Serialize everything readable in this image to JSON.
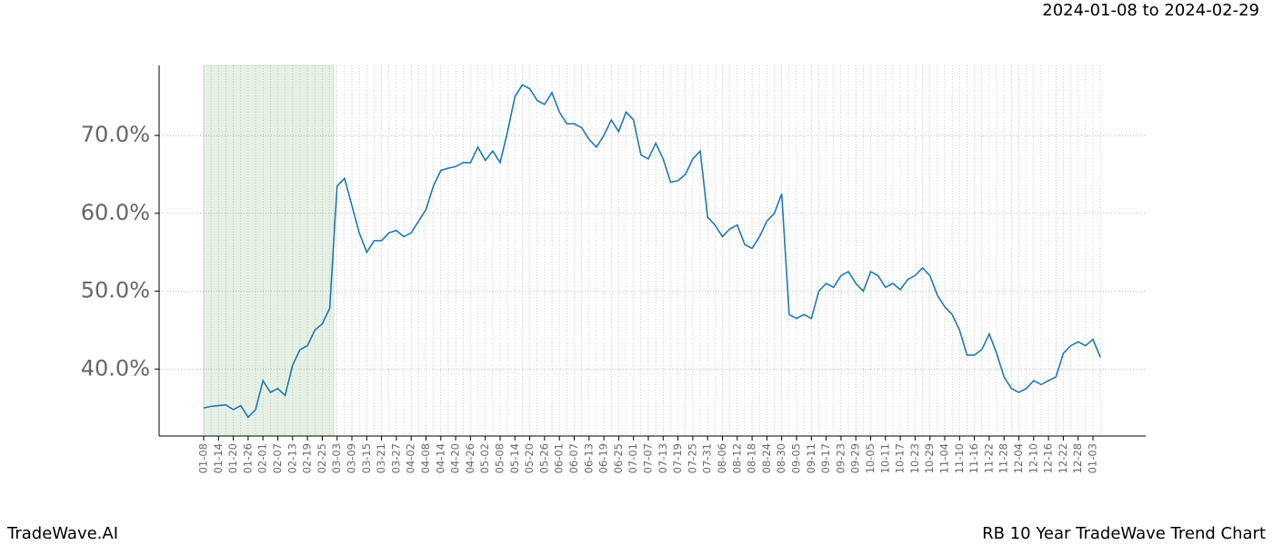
{
  "header": {
    "range": "2024-01-08 to 2024-02-29"
  },
  "footer": {
    "left": "TradeWave.AI",
    "right": "RB 10 Year TradeWave Trend Chart"
  },
  "chart_data": {
    "type": "line",
    "grid": true,
    "categories": [
      "01-08",
      null,
      "01-14",
      null,
      "01-20",
      null,
      "01-26",
      null,
      "02-01",
      null,
      "02-07",
      null,
      "02-13",
      null,
      "02-19",
      null,
      "02-25",
      null,
      "03-03",
      null,
      "03-09",
      null,
      "03-15",
      null,
      "03-21",
      null,
      "03-27",
      null,
      "04-02",
      null,
      "04-08",
      null,
      "04-14",
      null,
      "04-20",
      null,
      "04-26",
      null,
      "05-02",
      null,
      "05-08",
      null,
      "05-14",
      null,
      "05-20",
      null,
      "05-26",
      null,
      "06-01",
      null,
      "06-07",
      null,
      "06-13",
      null,
      "06-19",
      null,
      "06-25",
      null,
      "07-01",
      null,
      "07-07",
      null,
      "07-13",
      null,
      "07-19",
      null,
      "07-25",
      null,
      "07-31",
      null,
      "08-06",
      null,
      "08-12",
      null,
      "08-18",
      null,
      "08-24",
      null,
      "08-30",
      null,
      "09-05",
      null,
      "09-11",
      null,
      "09-17",
      null,
      "09-23",
      null,
      "09-29",
      null,
      "10-05",
      null,
      "10-11",
      null,
      "10-17",
      null,
      "10-23",
      null,
      "10-29",
      null,
      "11-04",
      null,
      "11-10",
      null,
      "11-16",
      null,
      "11-22",
      null,
      "11-28",
      null,
      "12-04",
      null,
      "12-10",
      null,
      "12-16",
      null,
      "12-22",
      null,
      "12-28",
      null,
      "01-03",
      null
    ],
    "series": [
      {
        "color": "#1f77b4",
        "values": [
          35.0,
          35.2,
          35.3,
          35.4,
          34.8,
          35.3,
          33.8,
          34.8,
          38.5,
          37.0,
          37.5,
          36.6,
          40.5,
          42.5,
          43.0,
          45.0,
          45.8,
          47.8,
          63.5,
          64.5,
          61.0,
          57.5,
          55.0,
          56.5,
          56.5,
          57.5,
          57.8,
          57.0,
          57.5,
          59.0,
          60.5,
          63.5,
          65.5,
          65.8,
          66.0,
          66.5,
          66.5,
          68.5,
          66.8,
          68.0,
          66.5,
          70.5,
          75.0,
          76.5,
          76.0,
          74.5,
          74.0,
          75.5,
          73.0,
          71.5,
          71.5,
          71.0,
          69.5,
          68.5,
          70.0,
          72.0,
          70.5,
          73.0,
          72.0,
          67.5,
          67.0,
          69.0,
          67.0,
          64.0,
          64.2,
          65.0,
          67.0,
          68.0,
          59.5,
          58.5,
          57.0,
          58.0,
          58.5,
          56.0,
          55.5,
          57.0,
          59.0,
          60.0,
          62.5,
          47.0,
          46.5,
          47.0,
          46.5,
          50.0,
          51.0,
          50.5,
          52.0,
          52.5,
          51.0,
          50.0,
          52.5,
          52.0,
          50.5,
          51.0,
          50.2,
          51.5,
          52.0,
          53.0,
          52.0,
          49.5,
          48.0,
          47.0,
          45.0,
          41.8,
          41.8,
          42.5,
          44.5,
          42.0,
          39.0,
          37.5,
          37.0,
          37.5,
          38.5,
          38.0,
          38.5,
          39.0,
          42.0,
          43.0,
          43.5,
          43.0,
          43.8,
          41.5
        ]
      }
    ],
    "ylim": [
      31.4,
      79.0
    ],
    "yticks": [
      {
        "value": 40,
        "label": "40.0%"
      },
      {
        "value": 50,
        "label": "50.0%"
      },
      {
        "value": 60,
        "label": "60.0%"
      },
      {
        "value": 70,
        "label": "70.0%"
      }
    ]
  }
}
